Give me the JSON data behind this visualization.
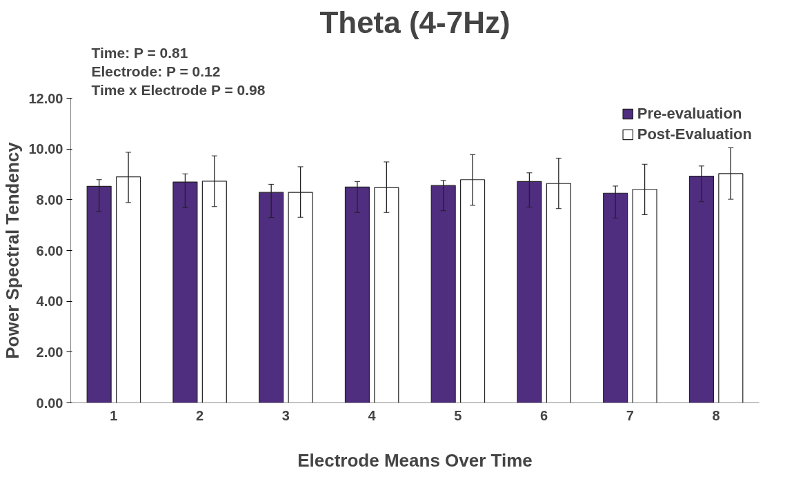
{
  "chart_data": {
    "type": "bar",
    "title": "Theta (4-7Hz)",
    "xlabel": "Electrode Means Over Time",
    "ylabel": "Power Spectral Tendency",
    "categories": [
      "1",
      "2",
      "3",
      "4",
      "5",
      "6",
      "7",
      "8"
    ],
    "series": [
      {
        "name": "Pre-evaluation",
        "color": "#4f2d7f",
        "values": [
          8.53,
          8.7,
          8.29,
          8.5,
          8.56,
          8.72,
          8.26,
          8.93
        ],
        "errors": [
          [
            7.54,
            8.79
          ],
          [
            7.69,
            9.02
          ],
          [
            7.3,
            8.61
          ],
          [
            7.5,
            8.72
          ],
          [
            7.57,
            8.76
          ],
          [
            7.71,
            9.06
          ],
          [
            7.28,
            8.54
          ],
          [
            7.92,
            9.33
          ]
        ]
      },
      {
        "name": "Post-Evaluation",
        "color": "#ffffff",
        "values": [
          8.9,
          8.73,
          8.29,
          8.48,
          8.79,
          8.64,
          8.41,
          9.03
        ],
        "errors": [
          [
            7.89,
            9.87
          ],
          [
            7.73,
            9.73
          ],
          [
            7.31,
            9.3
          ],
          [
            7.5,
            9.49
          ],
          [
            7.78,
            9.78
          ],
          [
            7.65,
            9.64
          ],
          [
            7.41,
            9.4
          ],
          [
            8.02,
            10.05
          ]
        ]
      }
    ],
    "ylim": [
      0,
      12
    ],
    "yticks": [
      {
        "value": 0,
        "label": "0.00"
      },
      {
        "value": 2,
        "label": "2.00"
      },
      {
        "value": 4,
        "label": "4.00"
      },
      {
        "value": 6,
        "label": "6.00"
      },
      {
        "value": 8,
        "label": "8.00"
      },
      {
        "value": 10,
        "label": "10.00"
      },
      {
        "value": 12,
        "label": "12.00"
      }
    ],
    "annotations": [
      "Time: P = 0.81",
      "Electrode: P = 0.12",
      "Time x Electrode P = 0.98"
    ],
    "grid": false,
    "legend": "top right"
  }
}
